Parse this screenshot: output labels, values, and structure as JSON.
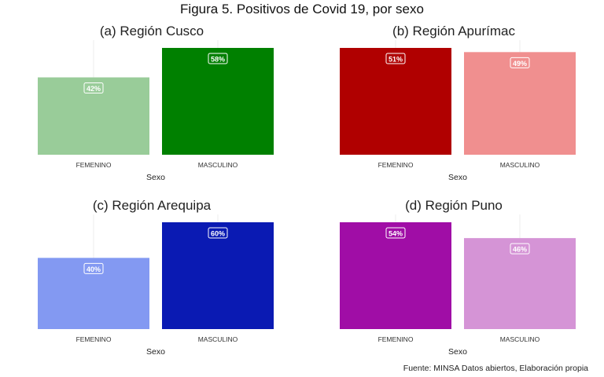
{
  "title": "Figura 5. Positivos de Covid 19, por sexo",
  "source": "Fuente: MINSA Datos abiertos, Elaboración propia",
  "chart_data": [
    {
      "type": "bar",
      "title": "(a) Región Cusco",
      "xlabel": "Sexo",
      "ylabel": "",
      "categories": [
        "FEMENINO",
        "MASCULINO"
      ],
      "values": [
        42,
        58
      ],
      "labels": [
        "42%",
        "58%"
      ],
      "colors": [
        "#99cc99",
        "#008000"
      ],
      "ylim": [
        0,
        58
      ]
    },
    {
      "type": "bar",
      "title": "(b) Región Apurímac",
      "xlabel": "Sexo",
      "ylabel": "",
      "categories": [
        "FEMENINO",
        "MASCULINO"
      ],
      "values": [
        51,
        49
      ],
      "labels": [
        "51%",
        "49%"
      ],
      "colors": [
        "#b00000",
        "#f08f8f"
      ],
      "ylim": [
        0,
        51
      ]
    },
    {
      "type": "bar",
      "title": "(c) Región Arequipa",
      "xlabel": "Sexo",
      "ylabel": "",
      "categories": [
        "FEMENINO",
        "MASCULINO"
      ],
      "values": [
        40,
        60
      ],
      "labels": [
        "40%",
        "60%"
      ],
      "colors": [
        "#8399f2",
        "#0a1ab3"
      ],
      "ylim": [
        0,
        60
      ]
    },
    {
      "type": "bar",
      "title": "(d) Región Puno",
      "xlabel": "Sexo",
      "ylabel": "",
      "categories": [
        "FEMENINO",
        "MASCULINO"
      ],
      "values": [
        54,
        46
      ],
      "labels": [
        "54%",
        "46%"
      ],
      "colors": [
        "#a00da6",
        "#d594d6"
      ],
      "ylim": [
        0,
        54
      ]
    }
  ]
}
